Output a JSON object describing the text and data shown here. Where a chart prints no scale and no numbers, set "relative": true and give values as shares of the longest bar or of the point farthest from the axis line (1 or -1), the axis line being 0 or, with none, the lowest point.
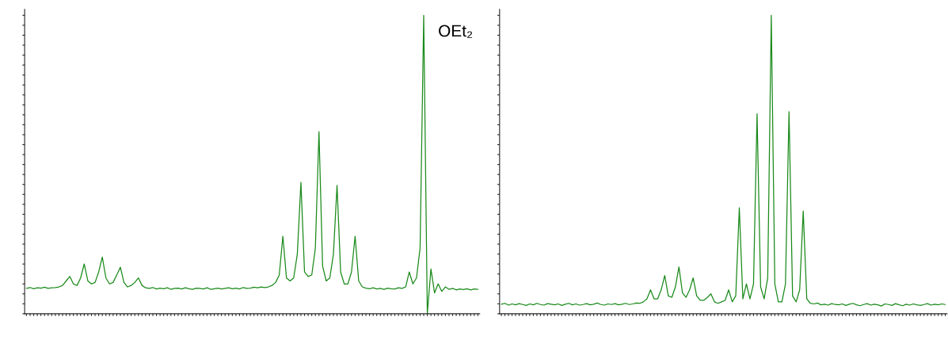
{
  "chart_data": [
    {
      "type": "line",
      "relative": true,
      "annotations": [
        "OEt₂"
      ],
      "categories": [
        null,
        null,
        null,
        null,
        null,
        null,
        null,
        null,
        null,
        null,
        null,
        null,
        null,
        null,
        null,
        null,
        null,
        null,
        null,
        null,
        null,
        null,
        null,
        null,
        null,
        null,
        null,
        null,
        null,
        null,
        null,
        null,
        null,
        null,
        null,
        null,
        null,
        null,
        null,
        null,
        null,
        null,
        null,
        null,
        null,
        null,
        null,
        null,
        null,
        null,
        null,
        null,
        null,
        null,
        null,
        null,
        null,
        null,
        null,
        null,
        null,
        null,
        null,
        null,
        null,
        null,
        null,
        null,
        null,
        null,
        null,
        null,
        null,
        null,
        null,
        null,
        null,
        null,
        null,
        null,
        null,
        null,
        null,
        null,
        null,
        null,
        null,
        null,
        null,
        null,
        null,
        null,
        null,
        null,
        null,
        null,
        null,
        null,
        null,
        null,
        null,
        null,
        null,
        null,
        null,
        null,
        null,
        null,
        null,
        null,
        null,
        null,
        null,
        null,
        null,
        null,
        null,
        null,
        null,
        null,
        null,
        null,
        null,
        null,
        null,
        null
      ],
      "series": [
        {
          "color": "#1a8a1a",
          "values": [
            0.085,
            0.088,
            0.084,
            0.087,
            0.086,
            0.089,
            0.085,
            0.087,
            0.088,
            0.09,
            0.095,
            0.11,
            0.125,
            0.1,
            0.095,
            0.12,
            0.167,
            0.11,
            0.1,
            0.105,
            0.14,
            0.19,
            0.12,
            0.1,
            0.105,
            0.13,
            0.156,
            0.105,
            0.09,
            0.095,
            0.105,
            0.12,
            0.095,
            0.087,
            0.085,
            0.088,
            0.083,
            0.086,
            0.084,
            0.087,
            0.082,
            0.085,
            0.086,
            0.083,
            0.087,
            0.084,
            0.082,
            0.086,
            0.085,
            0.083,
            0.087,
            0.082,
            0.084,
            0.086,
            0.083,
            0.085,
            0.087,
            0.084,
            0.086,
            0.083,
            0.088,
            0.085,
            0.086,
            0.089,
            0.087,
            0.09,
            0.088,
            0.09,
            0.095,
            0.105,
            0.13,
            0.26,
            0.12,
            0.11,
            0.12,
            0.2,
            0.44,
            0.14,
            0.125,
            0.13,
            0.22,
            0.61,
            0.16,
            0.11,
            0.12,
            0.2,
            0.43,
            0.14,
            0.1,
            0.1,
            0.14,
            0.26,
            0.11,
            0.09,
            0.086,
            0.084,
            0.087,
            0.083,
            0.085,
            0.082,
            0.086,
            0.084,
            0.083,
            0.087,
            0.085,
            0.09,
            0.14,
            0.1,
            0.12,
            0.22,
            1.0,
            0.0,
            0.15,
            0.07,
            0.1,
            0.075,
            0.09,
            0.082,
            0.085,
            0.08,
            0.083,
            0.081,
            0.084,
            0.08,
            0.083,
            0.082
          ]
        }
      ]
    },
    {
      "type": "line",
      "relative": true,
      "categories": [
        null,
        null,
        null,
        null,
        null,
        null,
        null,
        null,
        null,
        null,
        null,
        null,
        null,
        null,
        null,
        null,
        null,
        null,
        null,
        null,
        null,
        null,
        null,
        null,
        null,
        null,
        null,
        null,
        null,
        null,
        null,
        null,
        null,
        null,
        null,
        null,
        null,
        null,
        null,
        null,
        null,
        null,
        null,
        null,
        null,
        null,
        null,
        null,
        null,
        null,
        null,
        null,
        null,
        null,
        null,
        null,
        null,
        null,
        null,
        null,
        null,
        null,
        null,
        null,
        null,
        null,
        null,
        null,
        null,
        null,
        null,
        null,
        null,
        null,
        null,
        null,
        null,
        null,
        null,
        null,
        null,
        null,
        null,
        null,
        null,
        null,
        null,
        null,
        null,
        null,
        null,
        null,
        null,
        null,
        null,
        null,
        null,
        null,
        null,
        null,
        null,
        null,
        null,
        null,
        null,
        null,
        null,
        null,
        null,
        null,
        null,
        null,
        null,
        null,
        null,
        null,
        null,
        null,
        null,
        null,
        null,
        null,
        null,
        null,
        null,
        null
      ],
      "series": [
        {
          "color": "#1a8a1a",
          "values": [
            0.032,
            0.035,
            0.029,
            0.033,
            0.03,
            0.034,
            0.031,
            0.028,
            0.033,
            0.03,
            0.035,
            0.031,
            0.029,
            0.034,
            0.032,
            0.03,
            0.033,
            0.028,
            0.032,
            0.035,
            0.03,
            0.033,
            0.029,
            0.031,
            0.034,
            0.03,
            0.032,
            0.036,
            0.031,
            0.029,
            0.033,
            0.031,
            0.034,
            0.03,
            0.032,
            0.035,
            0.031,
            0.033,
            0.036,
            0.035,
            0.04,
            0.05,
            0.08,
            0.05,
            0.05,
            0.08,
            0.128,
            0.06,
            0.055,
            0.09,
            0.157,
            0.07,
            0.055,
            0.08,
            0.12,
            0.06,
            0.045,
            0.045,
            0.055,
            0.067,
            0.04,
            0.035,
            0.04,
            0.045,
            0.08,
            0.04,
            0.06,
            0.355,
            0.05,
            0.1,
            0.05,
            0.1,
            0.67,
            0.09,
            0.05,
            0.12,
            1.0,
            0.1,
            0.04,
            0.04,
            0.1,
            0.677,
            0.06,
            0.04,
            0.08,
            0.344,
            0.05,
            0.035,
            0.033,
            0.036,
            0.03,
            0.032,
            0.029,
            0.034,
            0.031,
            0.03,
            0.033,
            0.028,
            0.032,
            0.035,
            0.03,
            0.027,
            0.031,
            0.034,
            0.029,
            0.032,
            0.03,
            0.026,
            0.033,
            0.031,
            0.028,
            0.034,
            0.03,
            0.027,
            0.032,
            0.029,
            0.033,
            0.03,
            0.028,
            0.031,
            0.034,
            0.029,
            0.032,
            0.03,
            0.033,
            0.031
          ]
        }
      ]
    }
  ]
}
